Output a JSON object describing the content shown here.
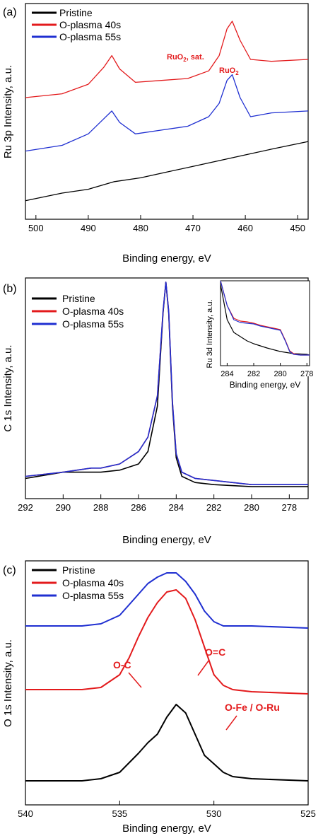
{
  "colors": {
    "pristine": "#000000",
    "o40": "#e31a1c",
    "o55": "#1f2fd1",
    "annotation": "#e31a1c"
  },
  "chart_data": [
    {
      "panel": "(a)",
      "type": "line",
      "xlabel": "Binding energy, eV",
      "ylabel": "Ru 3p Intensity, a.u.",
      "xlim": [
        502,
        448
      ],
      "xticks": [
        500,
        490,
        480,
        470,
        460,
        450
      ],
      "legend": {
        "placement": "top-left"
      },
      "series": [
        {
          "name": "Pristine",
          "color": "#000000",
          "x": [
            502,
            495,
            490,
            485,
            480,
            475,
            470,
            465,
            460,
            455,
            448
          ],
          "y": [
            0.06,
            0.1,
            0.12,
            0.16,
            0.18,
            0.21,
            0.24,
            0.27,
            0.3,
            0.33,
            0.37
          ]
        },
        {
          "name": "O-plasma 40s",
          "color": "#e31a1c",
          "x": [
            502,
            495,
            490,
            487,
            485.5,
            484,
            481,
            476,
            471,
            467,
            465,
            463.5,
            462.5,
            461,
            459,
            455,
            448
          ],
          "y": [
            0.6,
            0.62,
            0.67,
            0.76,
            0.82,
            0.75,
            0.68,
            0.69,
            0.7,
            0.74,
            0.82,
            0.96,
            1.0,
            0.9,
            0.8,
            0.79,
            0.8
          ]
        },
        {
          "name": "O-plasma 55s",
          "color": "#1f2fd1",
          "x": [
            502,
            495,
            490,
            487,
            485.5,
            484,
            481,
            476,
            471,
            467,
            465,
            463.5,
            462.5,
            461,
            459,
            455,
            448
          ],
          "y": [
            0.32,
            0.35,
            0.41,
            0.49,
            0.53,
            0.47,
            0.41,
            0.43,
            0.45,
            0.5,
            0.57,
            0.69,
            0.72,
            0.6,
            0.5,
            0.52,
            0.53
          ]
        }
      ],
      "annotations": [
        {
          "label": "RuO2, sat.",
          "x": 466
        },
        {
          "label": "RuO2",
          "x": 463
        }
      ]
    },
    {
      "panel": "(b)",
      "type": "line",
      "xlabel": "Binding energy, eV",
      "ylabel": "C 1s Intensity, a.u.",
      "xlim": [
        292,
        277
      ],
      "xticks": [
        292,
        290,
        288,
        286,
        284,
        282,
        280,
        278
      ],
      "legend": {
        "placement": "top-left"
      },
      "series": [
        {
          "name": "Pristine",
          "color": "#000000",
          "x": [
            292,
            290,
            288,
            287,
            286,
            285.5,
            285,
            284.7,
            284.55,
            284.4,
            284.2,
            284,
            283.7,
            283,
            282,
            280,
            277
          ],
          "y": [
            0.05,
            0.08,
            0.08,
            0.09,
            0.12,
            0.18,
            0.4,
            0.85,
            1.0,
            0.85,
            0.4,
            0.15,
            0.06,
            0.03,
            0.02,
            0.01,
            0.01
          ]
        },
        {
          "name": "O-plasma 40s",
          "color": "#e31a1c",
          "x": [
            292,
            290,
            288.5,
            288,
            287,
            286,
            285.5,
            285,
            284.7,
            284.55,
            284.4,
            284.2,
            284,
            283.7,
            283,
            282,
            280,
            277
          ],
          "y": [
            0.06,
            0.08,
            0.1,
            0.1,
            0.12,
            0.18,
            0.25,
            0.45,
            0.86,
            1.0,
            0.86,
            0.42,
            0.17,
            0.08,
            0.05,
            0.04,
            0.02,
            0.02
          ]
        },
        {
          "name": "O-plasma 55s",
          "color": "#1f2fd1",
          "x": [
            292,
            290,
            288.5,
            288,
            287,
            286,
            285.5,
            285,
            284.7,
            284.55,
            284.4,
            284.2,
            284,
            283.7,
            283,
            282,
            280,
            277
          ],
          "y": [
            0.06,
            0.08,
            0.1,
            0.1,
            0.12,
            0.18,
            0.25,
            0.45,
            0.86,
            1.0,
            0.86,
            0.42,
            0.17,
            0.08,
            0.05,
            0.04,
            0.02,
            0.02
          ]
        }
      ],
      "inset": {
        "xlabel": "Binding energy, eV",
        "ylabel": "Ru 3d Intensity, a.u.",
        "xlim": [
          284.5,
          277.8
        ],
        "xticks": [
          284,
          282,
          280,
          278
        ],
        "series": [
          {
            "name": "Pristine",
            "color": "#000000",
            "x": [
              284.5,
              284,
              283.5,
              283,
              282.5,
              282,
              281,
              280,
              279,
              278,
              277.8
            ],
            "y": [
              1.1,
              0.6,
              0.42,
              0.36,
              0.3,
              0.26,
              0.2,
              0.15,
              0.12,
              0.11,
              0.1
            ]
          },
          {
            "name": "O-plasma 40s",
            "color": "#e31a1c",
            "x": [
              284.5,
              284,
              283.5,
              283,
              282.5,
              282,
              281.5,
              281,
              280.5,
              280,
              279.6,
              279.3,
              279,
              278.5,
              278,
              277.8
            ],
            "y": [
              1.3,
              0.8,
              0.62,
              0.58,
              0.57,
              0.55,
              0.52,
              0.5,
              0.48,
              0.46,
              0.3,
              0.16,
              0.12,
              0.1,
              0.1,
              0.1
            ]
          },
          {
            "name": "O-plasma 55s",
            "color": "#1f2fd1",
            "x": [
              284.5,
              284,
              283.5,
              283,
              282.5,
              282,
              281.5,
              281,
              280.5,
              280,
              279.6,
              279.3,
              279,
              278.5,
              278,
              277.8
            ],
            "y": [
              1.3,
              0.8,
              0.6,
              0.56,
              0.55,
              0.54,
              0.51,
              0.49,
              0.47,
              0.45,
              0.29,
              0.15,
              0.11,
              0.1,
              0.1,
              0.1
            ]
          }
        ]
      }
    },
    {
      "panel": "(c)",
      "type": "line",
      "xlabel": "Binding energy, eV",
      "ylabel": "O 1s Intensity, a.u.",
      "xlim": [
        540,
        525
      ],
      "xticks": [
        540,
        535,
        530,
        525
      ],
      "legend": {
        "placement": "top-left"
      },
      "series": [
        {
          "name": "Pristine",
          "color": "#000000",
          "x": [
            540,
            537,
            536,
            535,
            534,
            533.5,
            533,
            532.5,
            532,
            531.5,
            531,
            530.5,
            530,
            529.5,
            529,
            528,
            525
          ],
          "y": [
            0.02,
            0.02,
            0.03,
            0.06,
            0.15,
            0.2,
            0.24,
            0.32,
            0.38,
            0.34,
            0.24,
            0.14,
            0.1,
            0.06,
            0.04,
            0.03,
            0.02
          ]
        },
        {
          "name": "O-plasma 40s",
          "color": "#e31a1c",
          "x": [
            540,
            537,
            536,
            535,
            534.5,
            534,
            533.5,
            533,
            532.5,
            532,
            531.5,
            531,
            530.5,
            530,
            529.5,
            529,
            528,
            525
          ],
          "y": [
            0.45,
            0.45,
            0.46,
            0.52,
            0.6,
            0.7,
            0.79,
            0.86,
            0.91,
            0.92,
            0.88,
            0.78,
            0.65,
            0.52,
            0.47,
            0.45,
            0.44,
            0.43
          ]
        },
        {
          "name": "O-plasma 55s",
          "color": "#1f2fd1",
          "x": [
            540,
            537,
            536,
            535,
            534.5,
            534,
            533.5,
            533,
            532.5,
            532,
            531.5,
            531,
            530.5,
            530,
            529.5,
            529,
            528,
            525
          ],
          "y": [
            0.75,
            0.75,
            0.76,
            0.8,
            0.85,
            0.9,
            0.95,
            0.98,
            1.0,
            1.0,
            0.96,
            0.9,
            0.82,
            0.77,
            0.75,
            0.75,
            0.75,
            0.74
          ]
        }
      ],
      "components": [
        {
          "panel_series": "O-plasma 40s",
          "label": "O-C",
          "center": 533.5
        },
        {
          "panel_series": "O-plasma 40s",
          "label": "O=C",
          "center": 531.9
        },
        {
          "panel_series": "O-plasma 40s",
          "label": "O-Fe / O-Ru",
          "center": 530.5
        }
      ]
    }
  ]
}
